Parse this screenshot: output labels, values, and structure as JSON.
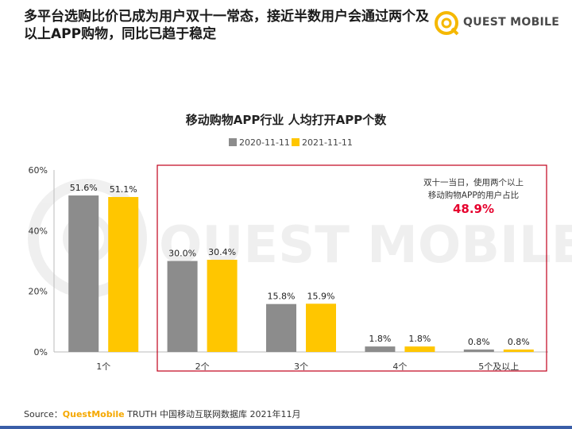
{
  "page": {
    "title": "多平台选购比价已成为用户双十一常态，接近半数用户会通过两个及以上APP购物，同比已趋于稳定",
    "logo_text": "QUEST MOBILE",
    "watermark_text": "QUEST MOBILE",
    "source_prefix": "Source：",
    "source_brand": "QuestMobile",
    "source_rest": " TRUTH 中国移动互联网数据库 2021年11月"
  },
  "callout": {
    "line1": "双十一当日，使用两个以上",
    "line2": "移动购物APP的用户占比",
    "value": "48.9%",
    "value_color": "#e6002d"
  },
  "chart_data": {
    "type": "bar",
    "title": "移动购物APP行业 人均打开APP个数",
    "categories": [
      "1个",
      "2个",
      "3个",
      "4个",
      "5个及以上"
    ],
    "series": [
      {
        "name": "2020-11-11",
        "color": "#8c8c8c",
        "values": [
          51.6,
          30.0,
          15.8,
          1.8,
          0.8
        ],
        "labels": [
          "51.6%",
          "30.0%",
          "15.8%",
          "1.8%",
          "0.8%"
        ]
      },
      {
        "name": "2021-11-11",
        "color": "#ffc600",
        "values": [
          51.1,
          30.4,
          15.9,
          1.8,
          0.8
        ],
        "labels": [
          "51.1%",
          "30.4%",
          "15.9%",
          "1.8%",
          "0.8%"
        ]
      }
    ],
    "ylim": [
      0,
      60
    ],
    "yticks": [
      0,
      20,
      40,
      60
    ],
    "ytick_labels": [
      "0%",
      "20%",
      "40%",
      "60%"
    ],
    "xlabel": "",
    "ylabel": "",
    "legend_position": "top-center",
    "highlight_categories": [
      "2个",
      "3个",
      "4个",
      "5个及以上"
    ],
    "highlight_color": "#c0001a"
  }
}
